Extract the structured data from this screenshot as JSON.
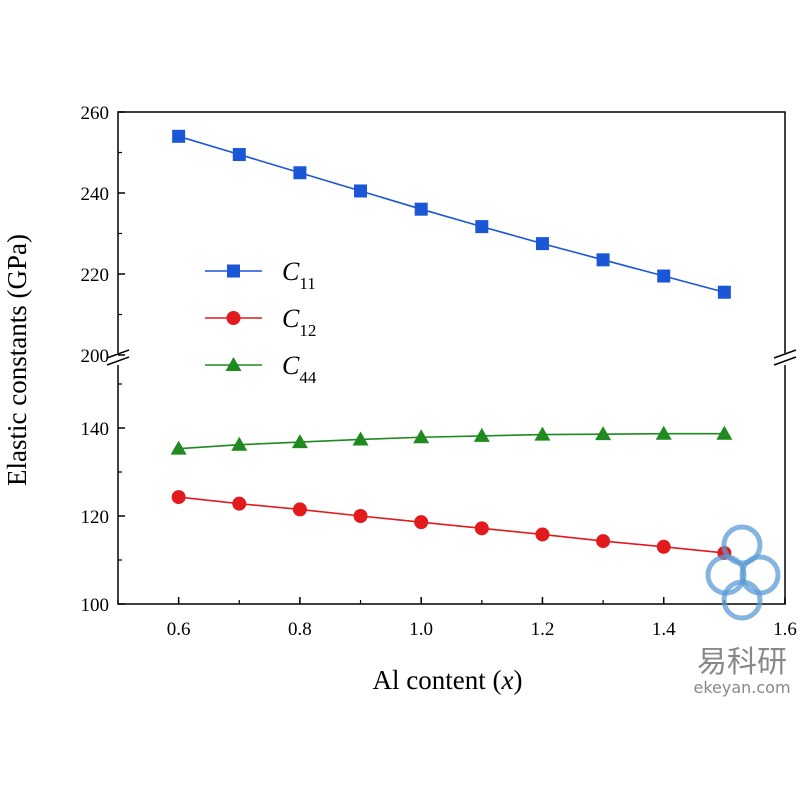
{
  "chart_data": {
    "type": "line",
    "xlabel": "Al content (x)",
    "xlabel_parts": {
      "prefix": "Al content (",
      "var": "x",
      "suffix": ")"
    },
    "ylabel": "Elastic constants (GPa)",
    "xlim": [
      0.5,
      1.6
    ],
    "x_ticks": [
      "0.6",
      "0.8",
      "1.0",
      "1.2",
      "1.4",
      "1.6"
    ],
    "y_axis_break": true,
    "y_segments": [
      {
        "range": [
          100,
          155
        ],
        "ticks": [
          "100",
          "120",
          "140"
        ]
      },
      {
        "range": [
          200,
          260
        ],
        "ticks": [
          "200",
          "220",
          "240",
          "260"
        ]
      }
    ],
    "legend_placement": "center-left",
    "x": [
      0.6,
      0.7,
      0.8,
      0.9,
      1.0,
      1.1,
      1.2,
      1.3,
      1.4,
      1.5
    ],
    "series": [
      {
        "name": "C11",
        "name_main": "C",
        "name_sub": "11",
        "marker": "square",
        "color": "#1a56d6",
        "values": [
          254.0,
          249.5,
          245.0,
          240.5,
          236.0,
          231.7,
          227.5,
          223.5,
          219.5,
          215.5
        ]
      },
      {
        "name": "C12",
        "name_main": "C",
        "name_sub": "12",
        "marker": "circle",
        "color": "#e31a1c",
        "values": [
          124.3,
          122.8,
          121.5,
          120.0,
          118.6,
          117.2,
          115.8,
          114.3,
          113.0,
          111.6
        ]
      },
      {
        "name": "C44",
        "name_main": "C",
        "name_sub": "44",
        "marker": "triangle",
        "color": "#1f8a1f",
        "values": [
          135.3,
          136.2,
          136.8,
          137.4,
          137.9,
          138.2,
          138.5,
          138.6,
          138.7,
          138.7
        ]
      }
    ]
  },
  "watermark": {
    "cn": "易科研",
    "en": "ekeyan.com",
    "color": "#5b9bd5"
  }
}
